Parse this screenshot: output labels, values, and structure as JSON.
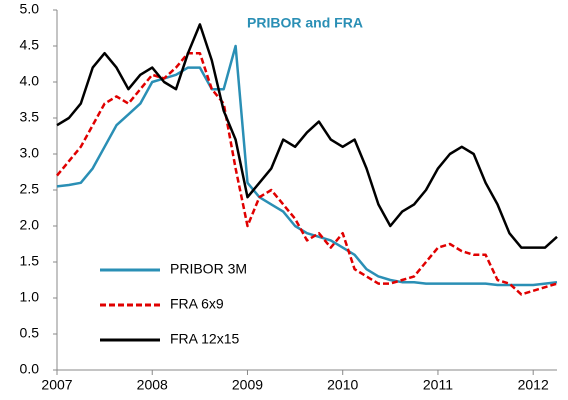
{
  "chart_data": {
    "type": "line",
    "title": "PRIBOR and FRA",
    "x": [
      2007,
      2007.125,
      2007.25,
      2007.375,
      2007.5,
      2007.625,
      2007.75,
      2007.875,
      2008,
      2008.125,
      2008.25,
      2008.375,
      2008.5,
      2008.625,
      2008.75,
      2008.875,
      2009,
      2009.125,
      2009.25,
      2009.375,
      2009.5,
      2009.625,
      2009.75,
      2009.875,
      2010,
      2010.125,
      2010.25,
      2010.375,
      2010.5,
      2010.625,
      2010.75,
      2010.875,
      2011,
      2011.125,
      2011.25,
      2011.375,
      2011.5,
      2011.625,
      2011.75,
      2011.875,
      2012,
      2012.125,
      2012.25
    ],
    "series": [
      {
        "name": "PRIBOR 3M",
        "color": "#2a8fb5",
        "dashed": false,
        "values": [
          2.55,
          2.57,
          2.6,
          2.8,
          3.1,
          3.4,
          3.55,
          3.7,
          4.0,
          4.05,
          4.1,
          4.2,
          4.2,
          3.9,
          3.9,
          4.5,
          2.6,
          2.4,
          2.3,
          2.2,
          2.0,
          1.9,
          1.85,
          1.8,
          1.7,
          1.6,
          1.4,
          1.3,
          1.25,
          1.22,
          1.22,
          1.2,
          1.2,
          1.2,
          1.2,
          1.2,
          1.2,
          1.18,
          1.18,
          1.18,
          1.18,
          1.2,
          1.22
        ]
      },
      {
        "name": "FRA 6x9",
        "color": "#e00000",
        "dashed": true,
        "values": [
          2.7,
          2.9,
          3.1,
          3.4,
          3.7,
          3.8,
          3.7,
          3.9,
          4.1,
          4.05,
          4.2,
          4.4,
          4.4,
          3.9,
          3.7,
          2.8,
          2.0,
          2.4,
          2.5,
          2.3,
          2.1,
          1.8,
          1.9,
          1.7,
          1.9,
          1.4,
          1.3,
          1.2,
          1.2,
          1.25,
          1.3,
          1.5,
          1.7,
          1.75,
          1.65,
          1.6,
          1.6,
          1.25,
          1.2,
          1.05,
          1.1,
          1.15,
          1.2
        ]
      },
      {
        "name": "FRA 12x15",
        "color": "#000000",
        "dashed": false,
        "values": [
          3.4,
          3.5,
          3.7,
          4.2,
          4.4,
          4.2,
          3.9,
          4.1,
          4.2,
          4.0,
          3.9,
          4.4,
          4.8,
          4.3,
          3.6,
          3.2,
          2.4,
          2.6,
          2.8,
          3.2,
          3.1,
          3.3,
          3.45,
          3.2,
          3.1,
          3.2,
          2.8,
          2.3,
          2.0,
          2.2,
          2.3,
          2.5,
          2.8,
          3.0,
          3.1,
          3.0,
          2.6,
          2.3,
          1.9,
          1.7,
          1.7,
          1.7,
          1.85
        ]
      }
    ],
    "xlim": [
      2007,
      2012.25
    ],
    "xticks": [
      2007,
      2008,
      2009,
      2010,
      2011,
      2012
    ],
    "ylim": [
      0,
      5
    ],
    "yticks": [
      {
        "value": 0,
        "label": "0.0"
      },
      0.5,
      {
        "value": 1,
        "label": "1.0"
      },
      1.5,
      {
        "value": 2,
        "label": "2.0"
      },
      2.5,
      {
        "value": 3,
        "label": "3.0"
      },
      3.5,
      {
        "value": 4,
        "label": "4.0"
      },
      4.5,
      {
        "value": 5,
        "label": "5.0"
      }
    ],
    "legend": "lower left",
    "grid": false
  }
}
